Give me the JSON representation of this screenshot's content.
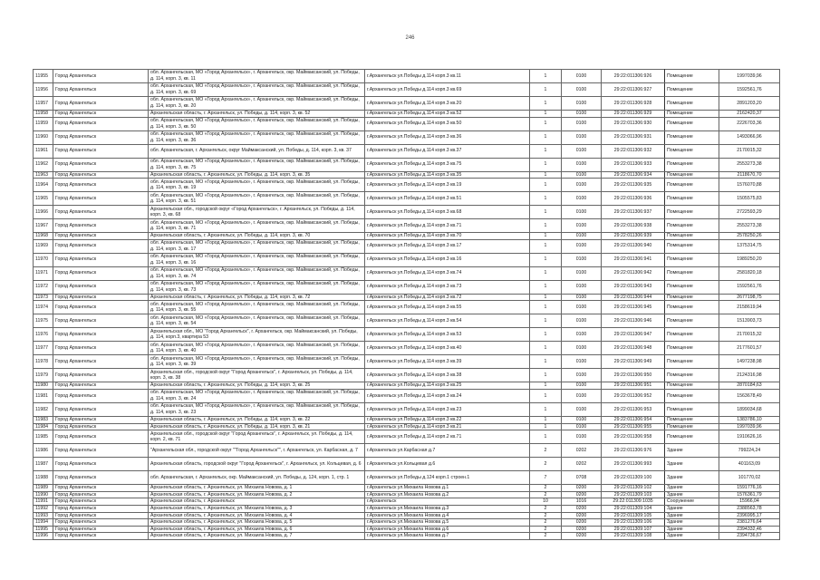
{
  "page_number": "246",
  "rows": [
    [
      "11955",
      "Город Архангельск",
      "обл. Архангельская, МО «Город Архангельск», г. Архангельск, окр. Маймаксанский, ул. Победы, д. 114, корп. 3, кв. 11",
      "г.Архангельск ул.Победы д.114 корп.3 кв.11",
      "1",
      "0100",
      "29:22:011306:926",
      "Помещение",
      "1997039,96"
    ],
    [
      "11956",
      "Город Архангельск",
      "обл. Архангельская, МО «Город Архангельск», г. Архангельск, окр. Маймаксанский, ул. Победы, д. 114, корп. 3, кв. 69",
      "г.Архангельск ул.Победы д.114 корп.3 кв.69",
      "1",
      "0100",
      "29:22:011306:927",
      "Помещение",
      "1592561,76"
    ],
    [
      "11957",
      "Город Архангельск",
      "обл. Архангельская, МО «Город Архангельск», г. Архангельск, окр. Маймаксанский, ул. Победы, д. 114, корп. 3, кв. 20",
      "г.Архангельск ул.Победы д.114 корп.3 кв.20",
      "1",
      "0100",
      "29:22:011306:928",
      "Помещение",
      "2891203,20"
    ],
    [
      "11958",
      "Город Архангельск",
      "Архангельская область, г. Архангельск, ул. Победы, д. 114, корп. 3, кв. 52",
      "г.Архангельск ул.Победы д.114 корп.3 кв.52",
      "1",
      "0100",
      "29:22:011306:929",
      "Помещение",
      "2162420,37"
    ],
    [
      "11959",
      "Город Архангельск",
      "обл. Архангельская, МО «Город Архангельск», г. Архангельск, окр. Маймаксанский, ул. Победы, д. 114, корп. 3, кв. 50",
      "г.Архангельск ул.Победы д.114 корп.3 кв.50",
      "1",
      "0100",
      "29:22:011306:930",
      "Помещение",
      "2226703,36"
    ],
    [
      "11960",
      "Город Архангельск",
      "обл. Архангельская, МО «Город Архангельск», г. Архангельск, окр. Маймаксанский, ул. Победы, д. 114, корп. 3, кв. 36",
      "г.Архангельск ул.Победы д.114 корп.3 кв.36",
      "1",
      "0100",
      "29:22:011306:931",
      "Помещение",
      "1493066,96"
    ],
    [
      "11961",
      "Город Архангельск",
      "обл. Архангельская, г. Архангельск, округ Маймаксанский, ул. Победы, д. 114, корп. 3, кв. 37",
      "г.Архангельск ул.Победы д.114 корп.3 кв.37",
      "1",
      "0100",
      "29:22:011306:932",
      "Помещение",
      "2170015,32"
    ],
    [
      "11962",
      "Город Архангельск",
      "обл. Архангельская, МО «Город Архангельск», г. Архангельск, окр. Маймаксанский, ул. Победы, д. 114, корп. 3, кв. 75",
      "г.Архангельск ул.Победы д.114 корп.3 кв.75",
      "1",
      "0100",
      "29:22:011306:933",
      "Помещение",
      "2553273,38"
    ],
    [
      "11963",
      "Город Архангельск",
      "Архангельская область, г. Архангельск, ул. Победы, д. 114, корп. 3, кв. 35",
      "г.Архангельск ул.Победы д.114 корп.3 кв.35",
      "1",
      "0100",
      "29:22:011306:934",
      "Помещение",
      "2118670,70"
    ],
    [
      "11964",
      "Город Архангельск",
      "обл. Архангельская, МО «Город Архангельск», г. Архангельск, окр. Маймаксанский, ул. Победы, д. 114, корп. 3, кв. 19",
      "г.Архангельск ул.Победы д.114 корп.3 кв.19",
      "1",
      "0100",
      "29:22:011306:935",
      "Помещение",
      "1576070,88"
    ],
    [
      "11965",
      "Город Архангельск",
      "обл. Архангельская, МО «Город Архангельск», г. Архангельск, окр. Маймаксанский, ул. Победы, д. 114, корп. 3, кв. 51",
      "г.Архангельск ул.Победы д.114 корп.3 кв.51",
      "1",
      "0100",
      "29:22:011306:936",
      "Помещение",
      "1505575,83"
    ],
    [
      "11966",
      "Город Архангельск",
      "Архангельская обл., городской округ «Город Архангельск», г. Архангельск, ул. Победы, д. 114, корп. 3, кв. 68",
      "г.Архангельск ул.Победы д.114 корп.3 кв.68",
      "1",
      "0100",
      "29:22:011306:937",
      "Помещение",
      "2722593,29"
    ],
    [
      "11967",
      "Город Архангельск",
      "обл. Архангельская, МО «Город Архангельск», г. Архангельск, окр. Маймаксанский, ул. Победы, д. 114, корп. 3, кв. 71",
      "г.Архангельск ул.Победы д.114 корп.3 кв.71",
      "1",
      "0100",
      "29:22:011306:938",
      "Помещение",
      "2553273,38"
    ],
    [
      "11968",
      "Город Архангельск",
      "Архангельская область, г. Архангельск, ул. Победы, д. 114, корп. 3, кв. 70",
      "г.Архангельск ул.Победы д.114 корп.3 кв.70",
      "1",
      "0100",
      "29:22:011306:939",
      "Помещение",
      "2578250,26"
    ],
    [
      "11969",
      "Город Архангельск",
      "обл. Архангельская, МО «Город Архангельск», г. Архангельск, окр. Маймаксанский, ул. Победы, д. 114, корп. 3, кв. 17",
      "г.Архангельск ул.Победы д.114 корп.3 кв.17",
      "1",
      "0100",
      "29:22:011306:940",
      "Помещение",
      "1375314,75"
    ],
    [
      "11970",
      "Город Архангельск",
      "обл. Архангельская, МО «Город Архангельск», г. Архангельск, окр. Маймаксанский, ул. Победы, д. 114, корп. 3, кв. 16",
      "г.Архангельск ул.Победы д.114 корп.3 кв.16",
      "1",
      "0100",
      "29:22:011306:941",
      "Помещение",
      "1989250,20"
    ],
    [
      "11971",
      "Город Архангельск",
      "обл. Архангельская, МО «Город Архангельск», г. Архангельск, окр. Маймаксанский, ул. Победы, д. 114, корп. 3, кв. 74",
      "г.Архангельск ул.Победы д.114 корп.3 кв.74",
      "1",
      "0100",
      "29:22:011306:942",
      "Помещение",
      "2581820,18"
    ],
    [
      "11972",
      "Город Архангельск",
      "обл. Архангельская, МО «Город Архангельск», г. Архангельск, окр. Маймаксанский, ул. Победы, д. 114, корп. 3, кв. 73",
      "г.Архангельск ул.Победы д.114 корп.3 кв.73",
      "1",
      "0100",
      "29:22:011306:943",
      "Помещение",
      "1592561,76"
    ],
    [
      "11973",
      "Город Архангельск",
      "Архангельская область, г. Архангельск, ул. Победы, д. 114, корп. 3, кв. 72",
      "г.Архангельск ул.Победы д.114 корп.3 кв.72",
      "1",
      "0100",
      "29:22:011306:944",
      "Помещение",
      "2677198,75"
    ],
    [
      "11974",
      "Город Архангельск",
      "обл. Архангельская, МО «Город Архангельск», г. Архангельск, окр. Маймаксанский, ул. Победы, д. 114, корп. 3, кв. 55",
      "г.Архангельск ул.Победы д.114 корп.3 кв.55",
      "1",
      "0100",
      "29:22:011306:945",
      "Помещение",
      "2158619,94"
    ],
    [
      "11975",
      "Город Архангельск",
      "обл. Архангельская, МО «Город Архангельск», г. Архангельск, окр. Маймаксанский, ул. Победы, д. 114, корп. 3, кв. 54",
      "г.Архангельск ул.Победы д.114 корп.3 кв.54",
      "1",
      "0100",
      "29:22:011306:946",
      "Помещение",
      "1513903,73"
    ],
    [
      "11976",
      "Город Архангельск",
      "Архангельская обл., МО \"Город Архангельск\", г. Архангельск, окр. Маймаксанский, ул. Победы, д. 114, корп.3, квартира 53",
      "г.Архангельск ул.Победы д.114 корп.3 кв.53",
      "1",
      "0100",
      "29:22:011306:947",
      "Помещение",
      "2170015,32"
    ],
    [
      "11977",
      "Город Архангельск",
      "обл. Архангельская, МО «Город Архангельск», г. Архангельск, окр. Маймаксанский, ул. Победы, д. 114, корп. 3, кв. 40",
      "г.Архангельск ул.Победы д.114 корп.3 кв.40",
      "1",
      "0100",
      "29:22:011306:948",
      "Помещение",
      "2177601,57"
    ],
    [
      "11978",
      "Город Архангельск",
      "обл. Архангельская, МО «Город Архангельск», г. Архангельск, окр. Маймаксанский, ул. Победы, д. 114, корп. 3, кв. 39",
      "г.Архангельск ул.Победы д.114 корп.3 кв.39",
      "1",
      "0100",
      "29:22:011306:949",
      "Помещение",
      "1497238,98"
    ],
    [
      "11979",
      "Город Архангельск",
      "Архангельская обл., городской округ \"Город Архангельск\", г. Архангельск, ул. Победы, д. 114, корп. 3, кв. 38",
      "г.Архангельск ул.Победы д.114 корп.3 кв.38",
      "1",
      "0100",
      "29:22:011306:950",
      "Помещение",
      "2124316,98"
    ],
    [
      "11980",
      "Город Архангельск",
      "Архангельская область, г. Архангельск, ул. Победы, д. 114, корп. 3, кв. 25",
      "г.Архангельск ул.Победы д.114 корп.3 кв.25",
      "1",
      "0100",
      "29:22:011306:951",
      "Помещение",
      "2870184,63"
    ],
    [
      "11981",
      "Город Архангельск",
      "обл. Архангельская, МО «Город Архангельск», г. Архангельск, окр. Маймаксанский, ул. Победы, д. 114, корп. 3, кв. 24",
      "г.Архангельск ул.Победы д.114 корп.3 кв.24",
      "1",
      "0100",
      "29:22:011306:952",
      "Помещение",
      "1563678,49"
    ],
    [
      "11982",
      "Город Архангельск",
      "обл. Архангельская, МО «Город Архангельск», г. Архангельск, окр. Маймаксанский, ул. Победы, д. 114, корп. 3, кв. 23",
      "г.Архангельск ул.Победы д.114 корп.3 кв.23",
      "1",
      "0100",
      "29:22:011306:953",
      "Помещение",
      "1899034,68"
    ],
    [
      "11983",
      "Город Архангельск",
      "Архангельская область, г. Архангельск, ул. Победы, д. 114, корп. 3, кв. 22",
      "г.Архангельск ул.Победы д.114 корп.3 кв.22",
      "1",
      "0100",
      "29:22:011306:954",
      "Помещение",
      "1383786,10"
    ],
    [
      "11984",
      "Город Архангельск",
      "Архангельская область, г. Архангельск, ул. Победы, д. 114, корп. 3, кв. 21",
      "г.Архангельск ул.Победы д.114 корп.3 кв.21",
      "1",
      "0100",
      "29:22:011306:955",
      "Помещение",
      "1997039,96"
    ],
    [
      "11985",
      "Город Архангельск",
      "Архангельская обл., городской округ \"Город Архангельск\", г. Архангельск, ул. Победы, д. 114, корп. 2, кв. 71",
      "г.Архангельск ул.Победы д.114 корп.2 кв.71",
      "1",
      "0100",
      "29:22:011306:958",
      "Помещение",
      "1910626,16"
    ],
    [
      "11986",
      "Город Архангельск",
      "\"Архангельская обл., городской округ \"\"Город Архангельск\"\", г. Архангельск, ул. Карбасная, д. 7",
      "г.Архангельск ул.Карбасная д.7",
      "2",
      "0202",
      "29:22:011306:976",
      "Здание",
      "799224,24"
    ],
    [
      "11987",
      "Город Архангельск",
      "Архангельская область, городской округ \"Город Архангельск\", г. Архангельск, ул. Кольцевая, д. 6",
      "г.Архангельск ул.Кольцевая д.6",
      "2",
      "0202",
      "29:22:011306:993",
      "Здание",
      "401163,09"
    ],
    [
      "11988",
      "Город Архангельск",
      "обл. Архангельская, г. Архангельск, окр. Маймаксанский, ул. Победы, д. 124, корп. 1, стр. 1",
      "г.Архангельск ул.Победы д.124 корп.1 строен.1",
      "7",
      "0708",
      "29:22:011309:100",
      "Здание",
      "101770,02"
    ],
    [
      "11989",
      "Город Архангельск",
      "Архангельская область, г. Архангельск, ул. Михаила Новова, д. 1",
      "г.Архангельск ул.Михаила Новова д.1",
      "2",
      "0200",
      "29:22:011309:102",
      "Здание",
      "1591776,16"
    ],
    [
      "11990",
      "Город Архангельск",
      "Архангельская область, г. Архангельск, ул. Михаила Новова, д. 2",
      "г.Архангельск ул.Михаила Новова д.2",
      "2",
      "0200",
      "29:22:011309:103",
      "Здание",
      "1576361,79"
    ],
    [
      "11991",
      "Город Архангельск",
      "Архангельская область, г. Архангельск",
      "г.Архангельск",
      "10",
      "1016",
      "29:22:011309:1035",
      "Сооружение",
      "15966,04"
    ],
    [
      "11992",
      "Город Архангельск",
      "Архангельская область, г. Архангельск, ул. Михаила Новова, д. 3",
      "г.Архангельск ул.Михаила Новова д.3",
      "2",
      "0200",
      "29:22:011309:104",
      "Здание",
      "2388563,78"
    ],
    [
      "11993",
      "Город Архангельск",
      "Архангельская область, г. Архангельск, ул. Михаила Новова, д. 4",
      "г.Архангельск ул.Михаила Новова д.4",
      "2",
      "0200",
      "29:22:011309:105",
      "Здание",
      "2396995,17"
    ],
    [
      "11994",
      "Город Архангельск",
      "Архангельская область, г. Архангельск, ул. Михаила Новова, д. 5",
      "г.Архангельск ул.Михаила Новова д.5",
      "2",
      "0200",
      "29:22:011309:106",
      "Здание",
      "2381276,64"
    ],
    [
      "11995",
      "Город Архангельск",
      "Архангельская область, г. Архангельск, ул. Михаила Новова, д. 6",
      "г.Архангельск ул.Михаила Новова д.6",
      "2",
      "0200",
      "29:22:011309:107",
      "Здание",
      "2394332,46"
    ],
    [
      "11996",
      "Город Архангельск",
      "Архангельская область, г. Архангельск, ул. Михаила Новова, д. 7",
      "г.Архангельск ул.Михаила Новова д.7",
      "2",
      "0200",
      "29:22:011309:108",
      "Здание",
      "2394736,67"
    ]
  ]
}
